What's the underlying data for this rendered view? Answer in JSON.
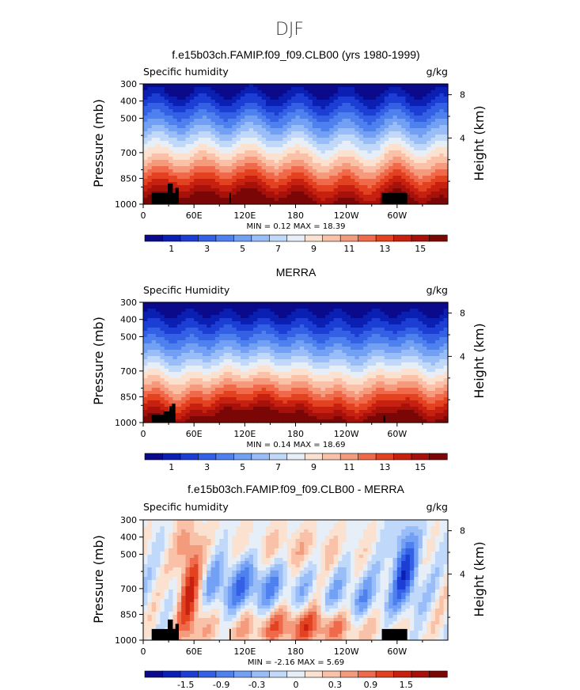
{
  "figure": {
    "title": "DJF"
  },
  "chart_data": [
    {
      "type": "heatmap",
      "title": "f.e15b03ch.FAMIP.f09_f09.CLB00 (yrs 1980-1999)",
      "left_label": "Specific humidity",
      "right_label": "g/kg",
      "ylabel": "Pressure (mb)",
      "y2label": "Height (km)",
      "x_ticks": [
        "0",
        "60E",
        "120E",
        "180",
        "120W",
        "60W"
      ],
      "y_ticks": [
        "300",
        "400",
        "500",
        "700",
        "850",
        "1000"
      ],
      "y2_ticks": [
        "8",
        "4"
      ],
      "minmax": "MIN =    0.12   MAX =   18.39",
      "colorbar_labels": [
        "1",
        "3",
        "5",
        "7",
        "9",
        "11",
        "13",
        "15"
      ],
      "colorbar_colors": [
        "#0a0a8a",
        "#0b1fb2",
        "#1c3ed4",
        "#3460e6",
        "#4f80ef",
        "#72a0f5",
        "#98bdf8",
        "#c0d8fa",
        "#e6eef8",
        "#fbe1cf",
        "#f9c2a8",
        "#f59b7d",
        "#ee6a4a",
        "#e2421f",
        "#c7200f",
        "#a8100a",
        "#7a0606"
      ],
      "field": "model"
    },
    {
      "type": "heatmap",
      "title": "MERRA",
      "left_label": "Specific Humidity",
      "right_label": "g/kg",
      "ylabel": "Pressure (mb)",
      "y2label": "Height (km)",
      "x_ticks": [
        "0",
        "60E",
        "120E",
        "180",
        "120W",
        "60W"
      ],
      "y_ticks": [
        "300",
        "400",
        "500",
        "700",
        "850",
        "1000"
      ],
      "y2_ticks": [
        "8",
        "4"
      ],
      "minmax": "MIN =    0.14   MAX =   18.69",
      "colorbar_labels": [
        "1",
        "3",
        "5",
        "7",
        "9",
        "11",
        "13",
        "15"
      ],
      "colorbar_colors": [
        "#0a0a8a",
        "#0b1fb2",
        "#1c3ed4",
        "#3460e6",
        "#4f80ef",
        "#72a0f5",
        "#98bdf8",
        "#c0d8fa",
        "#e6eef8",
        "#fbe1cf",
        "#f9c2a8",
        "#f59b7d",
        "#ee6a4a",
        "#e2421f",
        "#c7200f",
        "#a8100a",
        "#7a0606"
      ],
      "field": "merra"
    },
    {
      "type": "heatmap",
      "title": "f.e15b03ch.FAMIP.f09_f09.CLB00 - MERRA",
      "left_label": "Specific humidity",
      "right_label": "g/kg",
      "ylabel": "Pressure (mb)",
      "y2label": "Height (km)",
      "x_ticks": [
        "0",
        "60E",
        "120E",
        "180",
        "120W",
        "60W"
      ],
      "y_ticks": [
        "300",
        "400",
        "500",
        "700",
        "850",
        "1000"
      ],
      "y2_ticks": [
        "8",
        "4"
      ],
      "minmax": "MIN =   -2.16   MAX =    5.69",
      "colorbar_labels": [
        "-1.5",
        "-0.9",
        "-0.3",
        "0",
        "0.3",
        "0.9",
        "1.5"
      ],
      "colorbar_colors": [
        "#0a0a8a",
        "#0b1fb2",
        "#1c3ed4",
        "#3460e6",
        "#4f80ef",
        "#72a0f5",
        "#98bdf8",
        "#c0d8fa",
        "#e6eef8",
        "#fbe1cf",
        "#f9c2a8",
        "#f59b7d",
        "#ee6a4a",
        "#e2421f",
        "#c7200f",
        "#a8100a",
        "#7a0606"
      ],
      "field": "diff"
    }
  ]
}
